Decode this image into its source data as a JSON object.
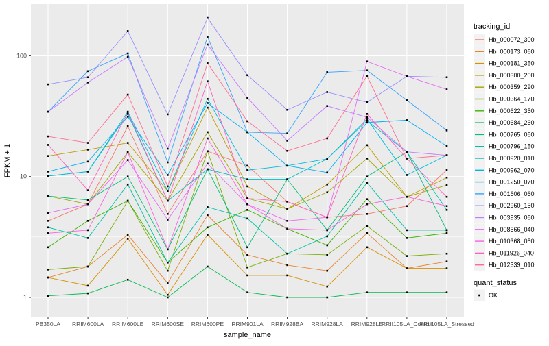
{
  "chart_data": {
    "type": "line",
    "title": "",
    "xlabel": "sample_name",
    "ylabel": "FPKM + 1",
    "y_scale": "log10",
    "y_major_ticks": [
      1,
      10,
      100
    ],
    "y_minor_ticks": [
      3.162,
      31.623
    ],
    "ylim": [
      0.69,
      268
    ],
    "grid": "on",
    "panel_bg": "#EBEBEB",
    "grid_color": "#FFFFFF",
    "tick_label_color": "#4D4D4D",
    "axis_title_color": "#000000",
    "point": {
      "shape": "square",
      "color": "#000000",
      "size": 2.6
    },
    "legend_position": "right",
    "legend": {
      "color_title": "tracking_id",
      "shape_title": "quant_status",
      "shape_item_label": "OK",
      "key_bg": "#F2F2F2"
    },
    "categories": [
      "PB350LA",
      "RRIM600LA",
      "RRIM600LE",
      "RRIM600SE",
      "RRIM600PE",
      "RRIM901LA",
      "RRIM928BA",
      "RRIM928LA",
      "RRIM928LE",
      "RRII105LA_Control",
      "RRII105LA_Stressed"
    ],
    "series": [
      {
        "name": "Hb_000072_300",
        "color": "#F8766D",
        "values": [
          4.3,
          5.9,
          26.1,
          4.9,
          16.2,
          12.3,
          6.2,
          4.6,
          4.9,
          5.7,
          11.3
        ]
      },
      {
        "name": "Hb_000173_060",
        "color": "#EA8331",
        "values": [
          1.46,
          1.8,
          3.3,
          1.31,
          4.8,
          2.25,
          1.85,
          1.66,
          3.4,
          1.74,
          1.98
        ]
      },
      {
        "name": "Hb_000181_350",
        "color": "#D89000",
        "values": [
          1.46,
          1.25,
          3.06,
          1.05,
          3.3,
          1.52,
          1.52,
          1.23,
          2.6,
          1.74,
          1.74
        ]
      },
      {
        "name": "Hb_000300_200",
        "color": "#C09B00",
        "values": [
          14.8,
          16.7,
          19.0,
          7.6,
          37.2,
          8.3,
          5.4,
          8.6,
          18.2,
          6.8,
          9.8
        ]
      },
      {
        "name": "Hb_000359_290",
        "color": "#A3A500",
        "values": [
          6.9,
          5.9,
          15.9,
          6.3,
          23.3,
          6.6,
          5.4,
          7.4,
          14.1,
          6.8,
          8.5
        ]
      },
      {
        "name": "Hb_000364_170",
        "color": "#7CAE00",
        "values": [
          1.7,
          1.8,
          6.3,
          1.66,
          16.2,
          1.77,
          2.3,
          2.25,
          3.9,
          2.2,
          2.3
        ]
      },
      {
        "name": "Hb_000622_350",
        "color": "#39B600",
        "values": [
          2.6,
          4.3,
          6.3,
          1.94,
          3.8,
          5.3,
          3.7,
          2.7,
          6.5,
          3.1,
          3.4
        ]
      },
      {
        "name": "Hb_000684_260",
        "color": "#00BB4E",
        "values": [
          1.03,
          1.08,
          1.4,
          1.0,
          1.8,
          1.1,
          1.0,
          1.0,
          1.1,
          1.1,
          1.1
        ]
      },
      {
        "name": "Hb_000765_060",
        "color": "#00BF7D",
        "values": [
          6.9,
          6.4,
          10.0,
          2.5,
          11.5,
          2.6,
          9.5,
          3.6,
          10.0,
          16.0,
          3.6
        ]
      },
      {
        "name": "Hb_000796_150",
        "color": "#00C1A3",
        "values": [
          3.8,
          3.1,
          8.6,
          1.94,
          5.6,
          4.5,
          2.3,
          3.2,
          8.9,
          3.6,
          3.6
        ]
      },
      {
        "name": "Hb_000920_010",
        "color": "#00BFC4",
        "values": [
          10.1,
          11.0,
          33.0,
          6.3,
          11.5,
          9.5,
          9.5,
          14.0,
          29.0,
          16.0,
          5.3
        ]
      },
      {
        "name": "Hb_000962_070",
        "color": "#00BAE0",
        "values": [
          10.1,
          11.0,
          34.4,
          7.6,
          44.0,
          11.3,
          12.3,
          14.0,
          30.0,
          10.3,
          15.0
        ]
      },
      {
        "name": "Hb_001250_070",
        "color": "#00B0F6",
        "values": [
          11.0,
          13.3,
          31.3,
          10.3,
          40.6,
          23.3,
          12.3,
          10.8,
          28.0,
          29.3,
          17.9
        ]
      },
      {
        "name": "Hb_001606_060",
        "color": "#35A2FF",
        "values": [
          34.4,
          74.6,
          104.5,
          13.1,
          143.5,
          23.3,
          22.8,
          73.1,
          75.7,
          42.8,
          24.1
        ]
      },
      {
        "name": "Hb_002960_150",
        "color": "#9590FF",
        "values": [
          58.0,
          66.4,
          160.0,
          32.7,
          206.0,
          69.0,
          35.7,
          50.0,
          41.2,
          67.6,
          66.4
        ]
      },
      {
        "name": "Hb_003935_060",
        "color": "#C77CFF",
        "values": [
          34.4,
          60.1,
          98.0,
          17.0,
          124.0,
          44.9,
          19.8,
          38.4,
          31.0,
          16.0,
          15.0
        ]
      },
      {
        "name": "Hb_008566_040",
        "color": "#E76BF3",
        "values": [
          5.0,
          5.9,
          13.7,
          4.4,
          12.8,
          5.9,
          4.3,
          4.6,
          89.7,
          67.6,
          52.7
        ]
      },
      {
        "name": "Hb_010368_050",
        "color": "#F763E0",
        "values": [
          3.4,
          3.6,
          15.9,
          2.5,
          20.7,
          5.9,
          3.7,
          3.6,
          5.9,
          6.8,
          5.7
        ]
      },
      {
        "name": "Hb_011926_040",
        "color": "#FF62BC",
        "values": [
          18.3,
          7.7,
          34.0,
          6.3,
          61.5,
          6.6,
          6.2,
          4.6,
          33.0,
          14.1,
          6.8
        ]
      },
      {
        "name": "Hb_012339_010",
        "color": "#FF6C90",
        "values": [
          21.5,
          19.0,
          47.7,
          8.3,
          87.0,
          28.7,
          16.3,
          20.7,
          67.9,
          14.1,
          15.0
        ]
      }
    ]
  }
}
